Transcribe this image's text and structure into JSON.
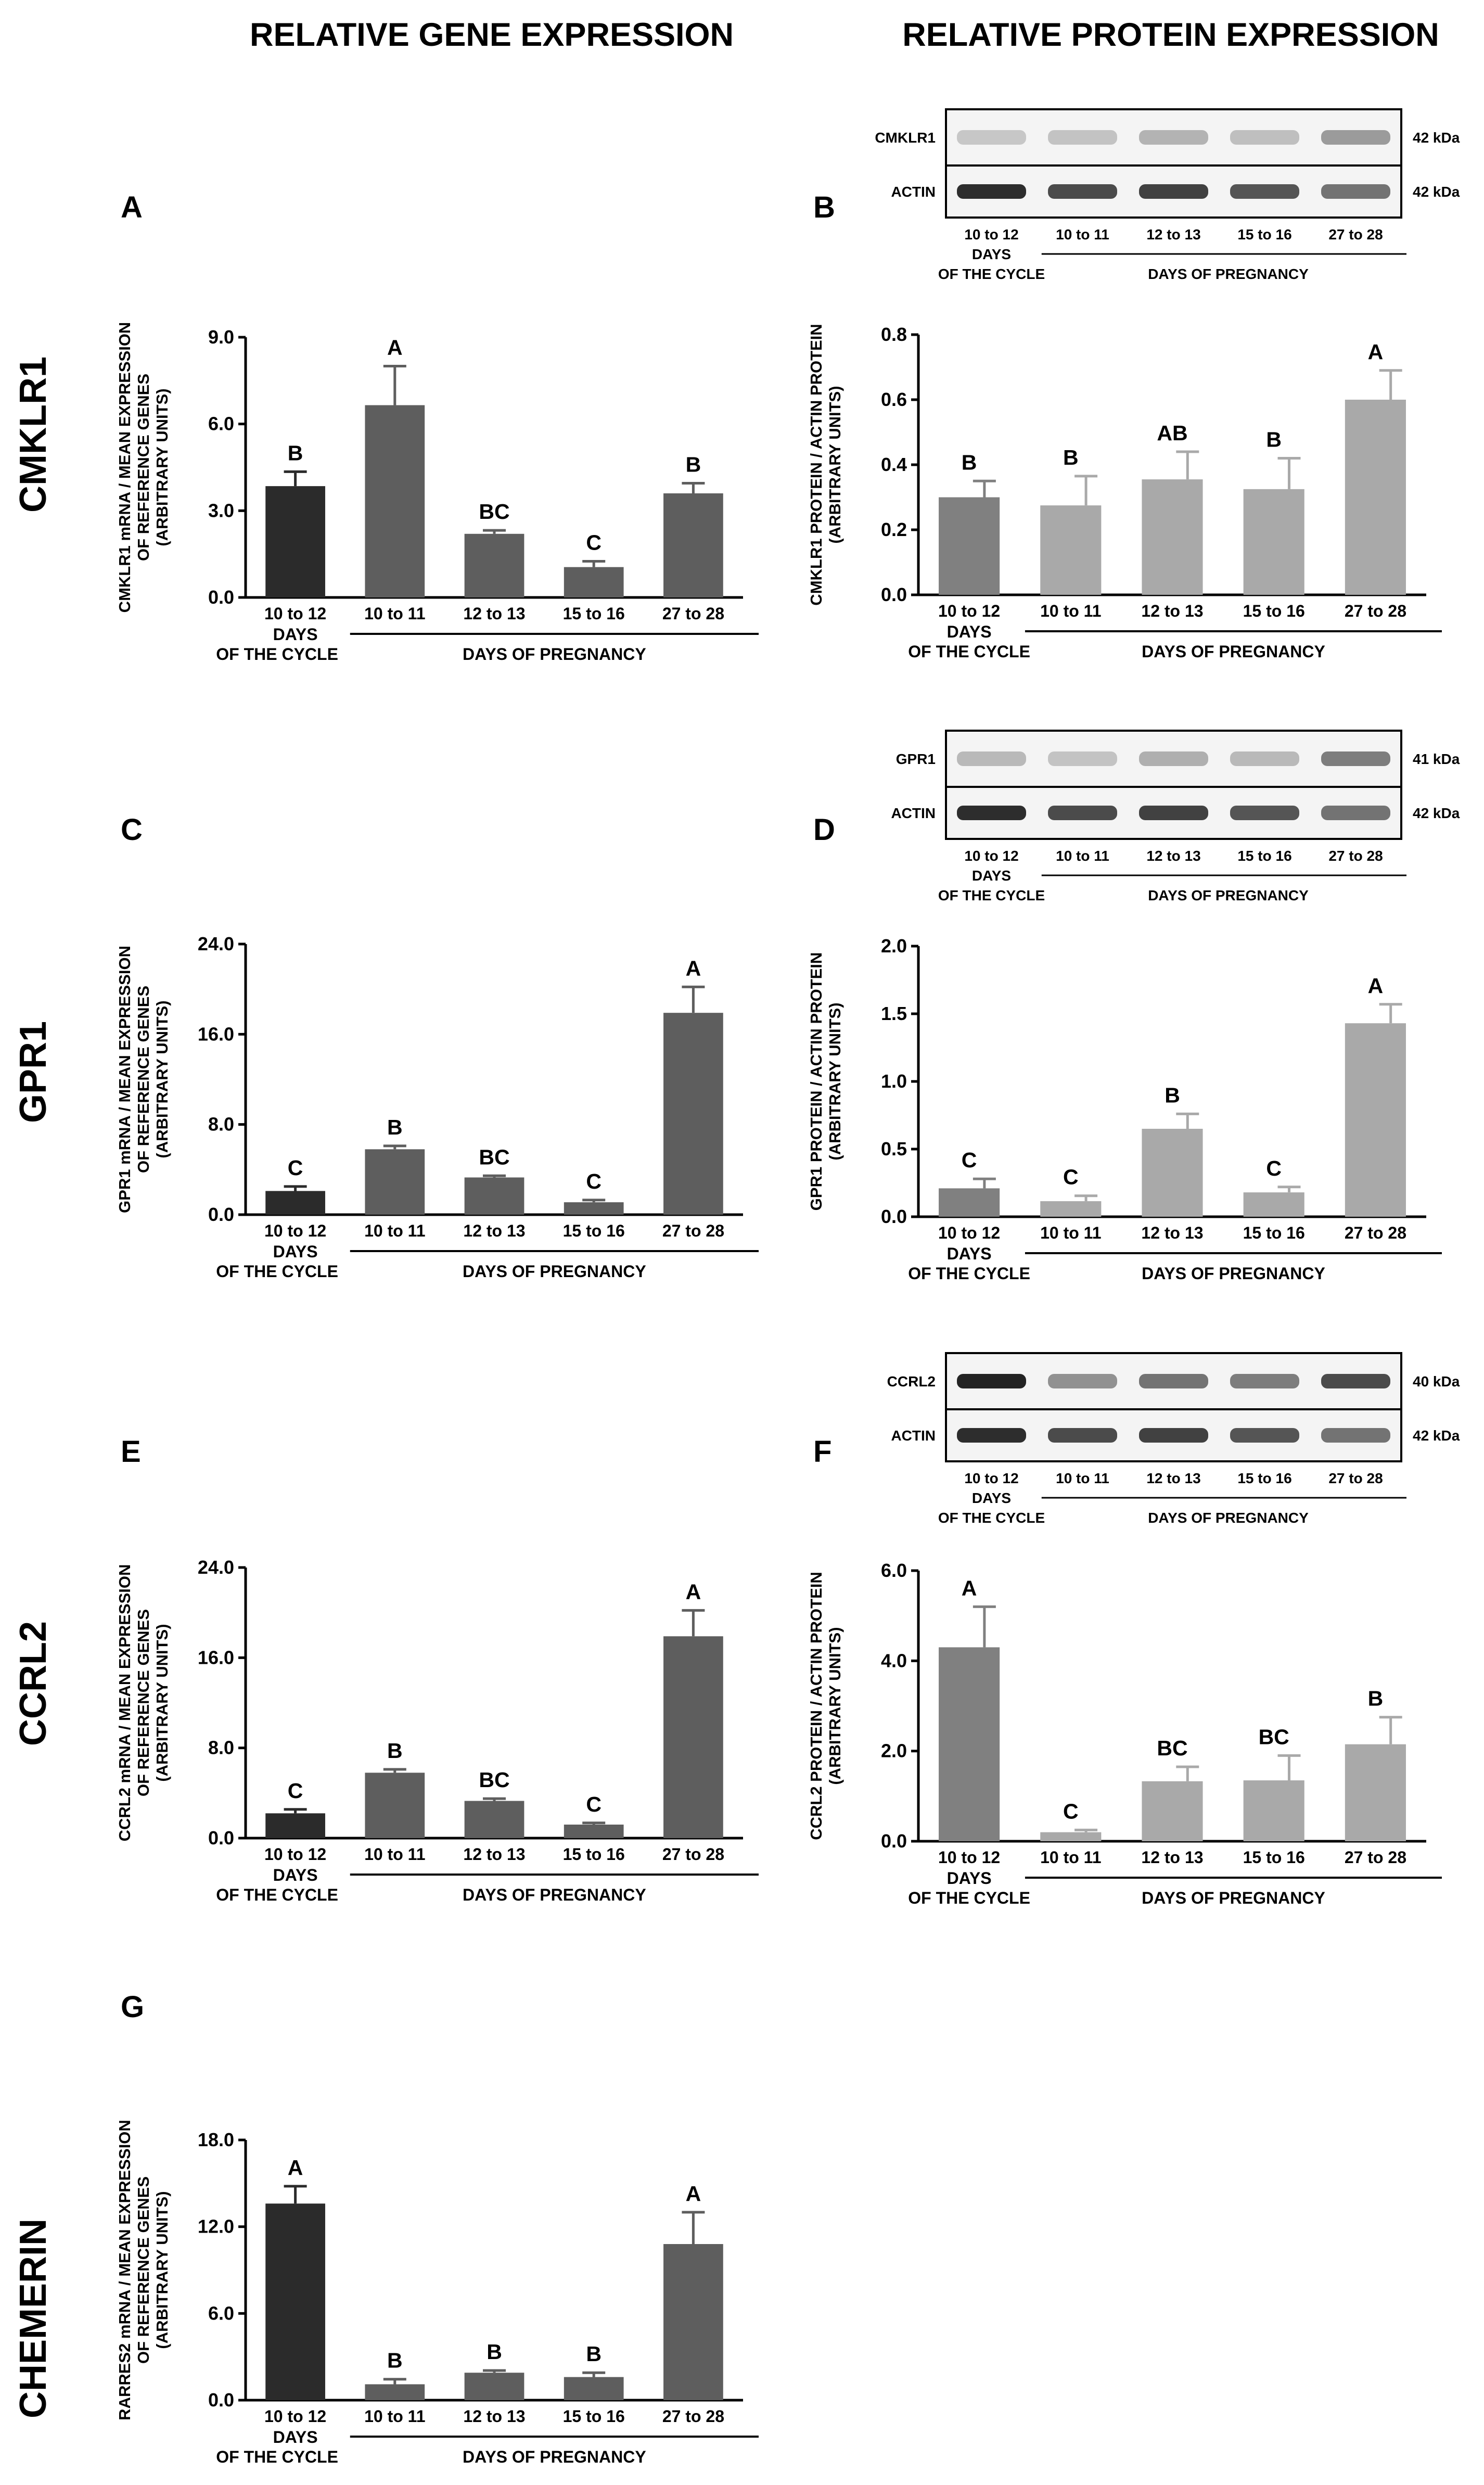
{
  "column_titles": {
    "left": "RELATIVE GENE EXPRESSION",
    "right": "RELATIVE PROTEIN EXPRESSION"
  },
  "row_titles": [
    "CMKLR1",
    "GPR1",
    "CCRL2",
    "CHEMERIN"
  ],
  "categories": [
    "10 to 12",
    "10 to 11",
    "12 to 13",
    "15 to 16",
    "27 to 28"
  ],
  "group_labels": {
    "cycle_line1": "DAYS",
    "cycle_line2": "OF THE CYCLE",
    "pregnancy": "DAYS OF PREGNANCY"
  },
  "colors": {
    "bar_cycle_gene": "#2b2b2b",
    "bar_preg_gene": "#5e5e5e",
    "bar_cycle_protein": "#808080",
    "bar_preg_protein": "#a9a9a9",
    "blot_band": "#3a3a3a"
  },
  "chart_data": [
    {
      "panel": "A",
      "type": "bar",
      "ylabel_lines": [
        "CMKLR1 mRNA / MEAN EXPRESSION",
        "OF REFERENCE GENES",
        "(ARBITRARY UNITS)"
      ],
      "categories": [
        "10 to 12",
        "10 to 11",
        "12 to 13",
        "15 to 16",
        "27 to 28"
      ],
      "values": [
        3.85,
        6.65,
        2.2,
        1.05,
        3.6
      ],
      "errors": [
        0.5,
        1.35,
        0.12,
        0.2,
        0.35
      ],
      "letters": [
        "B",
        "A",
        "BC",
        "C",
        "B"
      ],
      "ylim": [
        0,
        9.0
      ],
      "yticks": [
        "0.0",
        "3.0",
        "6.0",
        "9.0"
      ]
    },
    {
      "panel": "B",
      "type": "bar",
      "ylabel_lines": [
        "CMKLR1 PROTEIN / ACTIN PROTEIN",
        "(ARBITRARY UNITS)"
      ],
      "categories": [
        "10 to 12",
        "10 to 11",
        "12 to 13",
        "15 to 16",
        "27 to 28"
      ],
      "values": [
        0.3,
        0.275,
        0.355,
        0.325,
        0.6
      ],
      "errors": [
        0.05,
        0.09,
        0.085,
        0.095,
        0.09
      ],
      "letters": [
        "B",
        "B",
        "AB",
        "B",
        "A"
      ],
      "ylim": [
        0,
        0.8
      ],
      "yticks": [
        "0.0",
        "0.2",
        "0.4",
        "0.6",
        "0.8"
      ]
    },
    {
      "panel": "C",
      "type": "bar",
      "ylabel_lines": [
        "GPR1 mRNA / MEAN EXPRESSION",
        "OF REFERENCE GENES",
        "(ARBITRARY UNITS)"
      ],
      "categories": [
        "10 to 12",
        "10 to 11",
        "12 to 13",
        "15 to 16",
        "27 to 28"
      ],
      "values": [
        2.1,
        5.8,
        3.3,
        1.1,
        17.9
      ],
      "errors": [
        0.4,
        0.3,
        0.15,
        0.2,
        2.3
      ],
      "letters": [
        "C",
        "B",
        "BC",
        "C",
        "A"
      ],
      "ylim": [
        0,
        24.0
      ],
      "yticks": [
        "0.0",
        "8.0",
        "16.0",
        "24.0"
      ]
    },
    {
      "panel": "D",
      "type": "bar",
      "ylabel_lines": [
        "GPR1 PROTEIN / ACTIN PROTEIN",
        "(ARBITRARY UNITS)"
      ],
      "categories": [
        "10 to 12",
        "10 to 11",
        "12 to 13",
        "15 to 16",
        "27 to 28"
      ],
      "values": [
        0.21,
        0.115,
        0.65,
        0.18,
        1.43
      ],
      "errors": [
        0.07,
        0.04,
        0.11,
        0.04,
        0.14
      ],
      "letters": [
        "C",
        "C",
        "B",
        "C",
        "A"
      ],
      "ylim": [
        0,
        2.0
      ],
      "yticks": [
        "0.0",
        "0.5",
        "1.0",
        "1.5",
        "2.0"
      ]
    },
    {
      "panel": "E",
      "type": "bar",
      "ylabel_lines": [
        "CCRL2 mRNA / MEAN EXPRESSION",
        "OF REFERENCE GENES",
        "(ARBITRARY UNITS)"
      ],
      "categories": [
        "10 to 12",
        "10 to 11",
        "12 to 13",
        "15 to 16",
        "27 to 28"
      ],
      "values": [
        2.2,
        5.8,
        3.3,
        1.2,
        17.9
      ],
      "errors": [
        0.35,
        0.3,
        0.2,
        0.15,
        2.3
      ],
      "letters": [
        "C",
        "B",
        "BC",
        "C",
        "A"
      ],
      "ylim": [
        0,
        24.0
      ],
      "yticks": [
        "0.0",
        "8.0",
        "16.0",
        "24.0"
      ]
    },
    {
      "panel": "F",
      "type": "bar",
      "ylabel_lines": [
        "CCRL2 PROTEIN / ACTIN PROTEIN",
        "(ARBITRARY UNITS)"
      ],
      "categories": [
        "10 to 12",
        "10 to 11",
        "12 to 13",
        "15 to 16",
        "27 to 28"
      ],
      "values": [
        4.3,
        0.2,
        1.33,
        1.35,
        2.15
      ],
      "errors": [
        0.9,
        0.05,
        0.32,
        0.55,
        0.6
      ],
      "letters": [
        "A",
        "C",
        "BC",
        "BC",
        "B"
      ],
      "ylim": [
        0,
        6.0
      ],
      "yticks": [
        "0.0",
        "2.0",
        "4.0",
        "6.0"
      ]
    },
    {
      "panel": "G",
      "type": "bar",
      "ylabel_lines": [
        "RARRES2 mRNA / MEAN EXPRESSION",
        "OF REFERENCE GENES",
        "(ARBITRARY UNITS)"
      ],
      "categories": [
        "10 to 12",
        "10 to 11",
        "12 to 13",
        "15 to 16",
        "27 to 28"
      ],
      "values": [
        13.6,
        1.1,
        1.9,
        1.6,
        10.8
      ],
      "errors": [
        1.2,
        0.35,
        0.15,
        0.3,
        2.2
      ],
      "letters": [
        "A",
        "B",
        "B",
        "B",
        "A"
      ],
      "ylim": [
        0,
        18.0
      ],
      "yticks": [
        "0.0",
        "6.0",
        "12.0",
        "18.0"
      ]
    }
  ],
  "blots": [
    {
      "panel": "B",
      "target_label": "CMKLR1",
      "target_kda": "42 kDa",
      "actin_label": "ACTIN",
      "actin_kda": "42 kDa",
      "target_intensity": [
        0.18,
        0.2,
        0.28,
        0.22,
        0.4
      ],
      "actin_intensity": [
        0.95,
        0.8,
        0.85,
        0.75,
        0.6
      ]
    },
    {
      "panel": "D",
      "target_label": "GPR1",
      "target_kda": "41 kDa",
      "actin_label": "ACTIN",
      "actin_kda": "42 kDa",
      "target_intensity": [
        0.25,
        0.2,
        0.3,
        0.25,
        0.55
      ],
      "actin_intensity": [
        0.95,
        0.8,
        0.85,
        0.75,
        0.6
      ]
    },
    {
      "panel": "F",
      "target_label": "CCRL2",
      "target_kda": "40 kDa",
      "actin_label": "ACTIN",
      "actin_kda": "42 kDa",
      "target_intensity": [
        1.0,
        0.45,
        0.6,
        0.55,
        0.8
      ],
      "actin_intensity": [
        0.95,
        0.8,
        0.85,
        0.75,
        0.6
      ]
    }
  ]
}
